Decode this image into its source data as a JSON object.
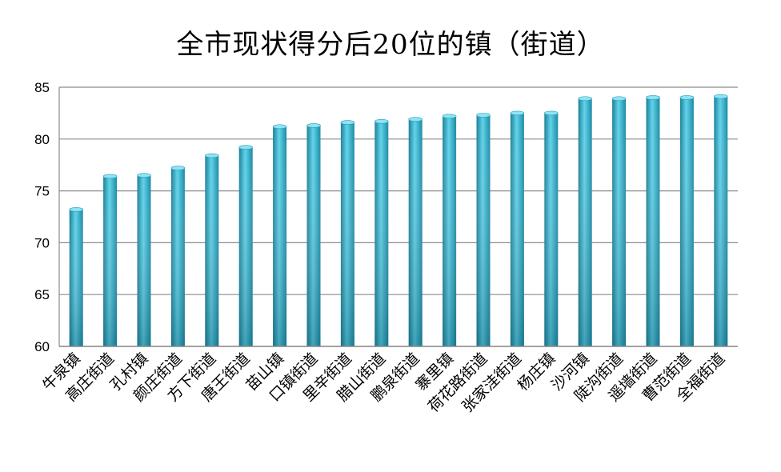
{
  "chart_data": {
    "type": "bar",
    "title": "全市现状得分后20位的镇（街道）",
    "xlabel": "",
    "ylabel": "",
    "ylim": [
      60,
      85
    ],
    "yticks": [
      60,
      65,
      70,
      75,
      80,
      85
    ],
    "grid": true,
    "bar_color": "#2aa8c4",
    "categories": [
      "牛泉镇",
      "高庄街道",
      "孔村镇",
      "颜庄街道",
      "方下街道",
      "唐王街道",
      "苗山镇",
      "口镇街道",
      "里辛街道",
      "腊山街道",
      "鹏泉街道",
      "寨里镇",
      "荷花路街道",
      "张家洼街道",
      "杨庄镇",
      "沙河镇",
      "陡沟街道",
      "遥墙街道",
      "曹范街道",
      "全福街道"
    ],
    "values": [
      73.2,
      76.4,
      76.5,
      77.2,
      78.4,
      79.2,
      81.2,
      81.3,
      81.6,
      81.7,
      81.9,
      82.2,
      82.3,
      82.5,
      82.5,
      83.9,
      83.9,
      84.0,
      84.0,
      84.1
    ]
  }
}
